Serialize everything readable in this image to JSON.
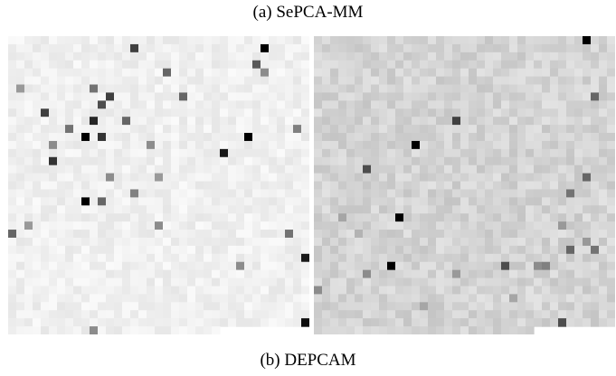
{
  "captions": {
    "top": "(a) SePCA-MM",
    "bottom": "(b) DEPCAM"
  },
  "colors": {
    "background": "#ffffff",
    "left_base_gray": "#efefef",
    "right_base_gray": "#d6d6d6"
  },
  "panels": {
    "left": {
      "grid": {
        "cols": 37,
        "rows": 37
      },
      "base_level": 0.06,
      "noise_level": 0.04,
      "notch": {
        "col_start": 26,
        "col_end": 37,
        "row_start": 36,
        "row_end": 37
      },
      "dark_cells": [
        [
          15,
          1,
          0.75
        ],
        [
          31,
          1,
          1.0
        ],
        [
          30,
          3,
          0.65
        ],
        [
          19,
          4,
          0.6
        ],
        [
          31,
          4,
          0.45
        ],
        [
          1,
          6,
          0.4
        ],
        [
          10,
          6,
          0.55
        ],
        [
          21,
          7,
          0.6
        ],
        [
          12,
          7,
          0.75
        ],
        [
          11,
          8,
          0.7
        ],
        [
          4,
          9,
          0.75
        ],
        [
          10,
          10,
          0.85
        ],
        [
          14,
          10,
          0.6
        ],
        [
          7,
          11,
          0.55
        ],
        [
          9,
          12,
          1.0
        ],
        [
          11,
          12,
          0.8
        ],
        [
          29,
          12,
          1.0
        ],
        [
          35,
          11,
          0.5
        ],
        [
          5,
          13,
          0.45
        ],
        [
          17,
          13,
          0.45
        ],
        [
          26,
          14,
          0.9
        ],
        [
          5,
          15,
          0.8
        ],
        [
          12,
          17,
          0.45
        ],
        [
          18,
          17,
          0.4
        ],
        [
          15,
          19,
          0.5
        ],
        [
          9,
          20,
          1.0
        ],
        [
          11,
          20,
          0.6
        ],
        [
          2,
          23,
          0.4
        ],
        [
          0,
          24,
          0.6
        ],
        [
          18,
          23,
          0.45
        ],
        [
          34,
          24,
          0.55
        ],
        [
          36,
          27,
          0.9
        ],
        [
          28,
          28,
          0.45
        ],
        [
          36,
          35,
          0.95
        ],
        [
          10,
          36,
          0.45
        ]
      ]
    },
    "right": {
      "grid": {
        "cols": 37,
        "rows": 37
      },
      "base_level": 0.17,
      "noise_level": 0.06,
      "notch": {
        "col_start": 27,
        "col_end": 37,
        "row_start": 36,
        "row_end": 37
      },
      "dark_cells": [
        [
          33,
          0,
          1.0
        ],
        [
          34,
          7,
          0.6
        ],
        [
          17,
          10,
          0.75
        ],
        [
          12,
          13,
          1.0
        ],
        [
          6,
          16,
          0.7
        ],
        [
          33,
          17,
          0.6
        ],
        [
          31,
          19,
          0.55
        ],
        [
          3,
          22,
          0.35
        ],
        [
          10,
          22,
          1.0
        ],
        [
          30,
          23,
          0.4
        ],
        [
          5,
          24,
          0.3
        ],
        [
          31,
          26,
          0.6
        ],
        [
          34,
          26,
          0.55
        ],
        [
          33,
          25,
          0.4
        ],
        [
          27,
          28,
          0.45
        ],
        [
          9,
          28,
          1.0
        ],
        [
          23,
          28,
          0.7
        ],
        [
          28,
          28,
          0.5
        ],
        [
          6,
          29,
          0.45
        ],
        [
          17,
          29,
          0.4
        ],
        [
          0,
          31,
          0.45
        ],
        [
          30,
          35,
          0.7
        ],
        [
          24,
          32,
          0.35
        ],
        [
          13,
          33,
          0.35
        ]
      ]
    }
  }
}
